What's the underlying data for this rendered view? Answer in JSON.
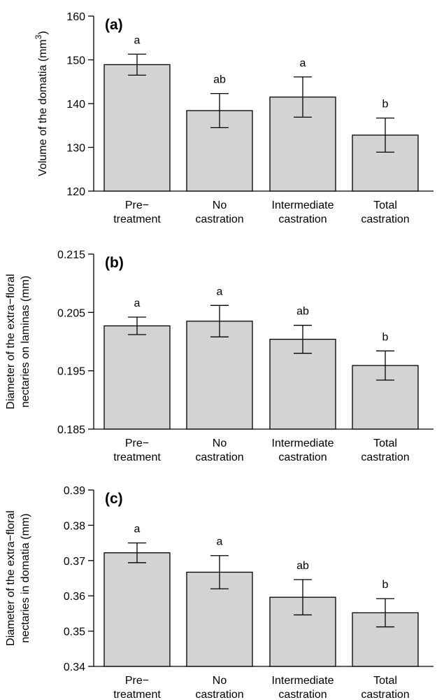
{
  "chart_data": [
    {
      "type": "bar",
      "panel_label": "(a)",
      "ylabel": "Volume of the domatia",
      "ylabel_unit": "(mm",
      "ylabel_unit_sup": "3",
      "ylabel_unit_close": ")",
      "ylim": [
        120,
        160
      ],
      "yticks": [
        "120",
        "130",
        "140",
        "150",
        "160"
      ],
      "ytick_values": [
        120,
        130,
        140,
        150,
        160
      ],
      "categories": [
        [
          "Pre−",
          "treatment"
        ],
        [
          "No",
          "castration"
        ],
        [
          "Intermediate",
          "castration"
        ],
        [
          "Total",
          "castration"
        ]
      ],
      "values": [
        148.9,
        138.4,
        141.5,
        132.8
      ],
      "error": [
        2.4,
        3.9,
        4.6,
        3.9
      ],
      "letters": [
        "a",
        "ab",
        "a",
        "b"
      ]
    },
    {
      "type": "bar",
      "panel_label": "(b)",
      "ylabel_lines": [
        "Diameter of the extra−floral",
        "nectaries on laminas (mm)"
      ],
      "ylim": [
        0.185,
        0.215
      ],
      "yticks": [
        "0.185",
        "0.195",
        "0.205",
        "0.215"
      ],
      "ytick_values": [
        0.185,
        0.195,
        0.205,
        0.215
      ],
      "categories": [
        [
          "Pre−",
          "treatment"
        ],
        [
          "No",
          "castration"
        ],
        [
          "Intermediate",
          "castration"
        ],
        [
          "Total",
          "castration"
        ]
      ],
      "values": [
        0.2027,
        0.2035,
        0.2004,
        0.1959
      ],
      "error": [
        0.0015,
        0.0027,
        0.0024,
        0.0025
      ],
      "letters": [
        "a",
        "a",
        "ab",
        "b"
      ]
    },
    {
      "type": "bar",
      "panel_label": "(c)",
      "ylabel_lines": [
        "Diameter of the extra−floral",
        "nectaries in domatia (mm)"
      ],
      "ylim": [
        0.34,
        0.39
      ],
      "yticks": [
        "0.34",
        "0.35",
        "0.36",
        "0.37",
        "0.38",
        "0.39"
      ],
      "ytick_values": [
        0.34,
        0.35,
        0.36,
        0.37,
        0.38,
        0.39
      ],
      "categories": [
        [
          "Pre−",
          "treatment"
        ],
        [
          "No",
          "castration"
        ],
        [
          "Intermediate",
          "castration"
        ],
        [
          "Total",
          "castration"
        ]
      ],
      "values": [
        0.3722,
        0.3667,
        0.3596,
        0.3552
      ],
      "error": [
        0.0028,
        0.0047,
        0.005,
        0.004
      ],
      "letters": [
        "a",
        "a",
        "ab",
        "b"
      ]
    }
  ]
}
